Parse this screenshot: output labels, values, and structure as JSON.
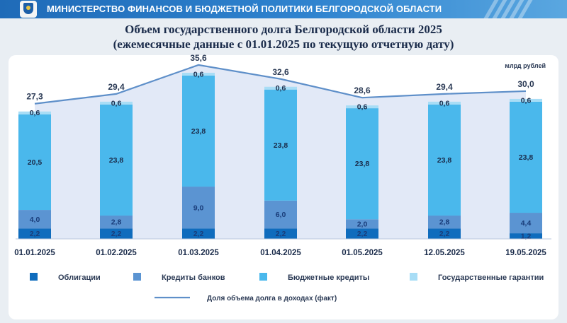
{
  "header": {
    "ministry": "МИНИСТЕРСТВО ФИНАНСОВ И БЮДЖЕТНОЙ ПОЛИТИКИ БЕЛГОРОДСКОЙ ОБЛАСТИ",
    "emblem_icon": "region-coat-of-arms-icon"
  },
  "chart_data": {
    "type": "bar",
    "stacked": true,
    "title": "Объем государственного долга Белгородской области 2025",
    "subtitle": "(ежемесячные данные с 01.01.2025 по текущую отчетную дату)",
    "unit_label": "млрд рублей",
    "categories": [
      "01.01.2025",
      "01.02.2025",
      "01.03.2025",
      "01.04.2025",
      "01.05.2025",
      "12.05.2025",
      "19.05.2025"
    ],
    "series": [
      {
        "name": "Облигации",
        "color": "#0f6cbd",
        "values": [
          2.2,
          2.2,
          2.2,
          2.2,
          2.2,
          2.2,
          1.2
        ],
        "labels": [
          "2,2",
          "2,2",
          "2,2",
          "2,2",
          "2,2",
          "2,2",
          "1,2"
        ]
      },
      {
        "name": "Кредиты банков",
        "color": "#5b94d2",
        "values": [
          4.0,
          2.8,
          9.0,
          6.0,
          2.0,
          2.8,
          4.4
        ],
        "labels": [
          "4,0",
          "2,8",
          "9,0",
          "6,0",
          "2,0",
          "2,8",
          "4,4"
        ]
      },
      {
        "name": "Бюджетные кредиты",
        "color": "#4ab8ec",
        "values": [
          20.5,
          23.8,
          23.8,
          23.8,
          23.8,
          23.8,
          23.8
        ],
        "labels": [
          "20,5",
          "23,8",
          "23,8",
          "23,8",
          "23,8",
          "23,8",
          "23,8"
        ]
      },
      {
        "name": "Государственные гарантии",
        "color": "#a8ddf6",
        "values": [
          0.6,
          0.6,
          0.6,
          0.6,
          0.6,
          0.6,
          0.6
        ],
        "labels": [
          "0,6",
          "0,6",
          "0,6",
          "0,6",
          "0,6",
          "0,6",
          "0,6"
        ]
      }
    ],
    "totals": [
      27.3,
      29.4,
      35.6,
      32.6,
      28.6,
      29.4,
      30.0
    ],
    "total_labels": [
      "27,3",
      "29,4",
      "35,6",
      "32,6",
      "28,6",
      "29,4",
      "30,0"
    ],
    "line_series": {
      "name": "Доля объема долга в доходах (факт)",
      "color": "#5e8fc9"
    },
    "ylim": [
      0,
      36.5
    ],
    "grid": false,
    "legend_position": "bottom"
  }
}
